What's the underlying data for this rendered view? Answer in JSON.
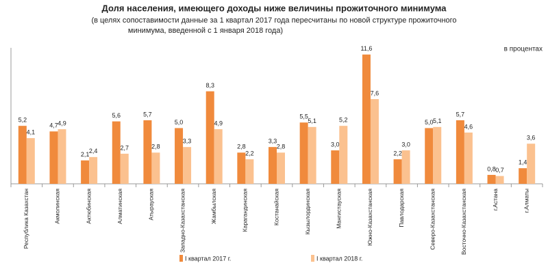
{
  "chart_data": {
    "type": "bar",
    "title": "Доля населения, имеющего доходы ниже величины прожиточного минимума",
    "subtitle": [
      "(в целях сопоставимости данные за 1 квартал 2017 года пересчитаны по новой структуре прожиточного",
      "минимума, введенной с 1 января 2018 года)"
    ],
    "unit_label": "в процентах",
    "categories": [
      "Республика Казахстан",
      "Акмолинская",
      "Актюбинская",
      "Алматинская",
      "Атырауская",
      "Западно-Казахстанская",
      "Жамбылская",
      "Карагандинская",
      "Костанайская",
      "Кызылординская",
      "Мангистауская",
      "Южно-Казахстанская",
      "Павлодарская",
      "Северо-Казахстанская",
      "Восточно-Казахстанская",
      "г.Астана",
      "г.Алматы"
    ],
    "series": [
      {
        "name": "I квартал 2017 г.",
        "color": "#f08a3c",
        "values": [
          5.2,
          4.7,
          2.1,
          5.6,
          5.7,
          5.0,
          8.3,
          2.8,
          3.3,
          5.5,
          3.0,
          11.6,
          2.2,
          5.0,
          5.7,
          0.8,
          1.4
        ],
        "value_labels": [
          "5,2",
          "4,7",
          "2,1",
          "5,6",
          "5,7",
          "5,0",
          "8,3",
          "2,8",
          "3,3",
          "5,5",
          "3,0",
          "11,6",
          "2,2",
          "5,0",
          "5,7",
          "0,8",
          "1,4"
        ]
      },
      {
        "name": "I квартал 2018 г.",
        "color": "#fbc18f",
        "values": [
          4.1,
          4.9,
          2.4,
          2.7,
          2.8,
          3.3,
          4.9,
          2.2,
          2.8,
          5.1,
          5.2,
          7.6,
          3.0,
          5.1,
          4.6,
          0.7,
          3.6
        ],
        "value_labels": [
          "4,1",
          "4,9",
          "2,4",
          "2,7",
          "2,8",
          "3,3",
          "4,9",
          "2,2",
          "2,8",
          "5,1",
          "5,2",
          "7,6",
          "3,0",
          "5,1",
          "4,6",
          "0,7",
          "3,6"
        ]
      }
    ],
    "ylim": [
      0,
      12.2
    ]
  }
}
